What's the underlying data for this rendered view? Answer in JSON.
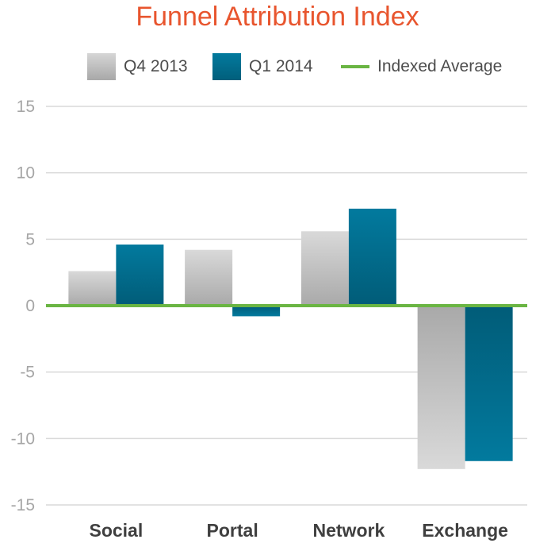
{
  "chart_data": {
    "type": "bar",
    "title": "Funnel Attribution Index",
    "xlabel": "",
    "ylabel": "",
    "categories": [
      "Social",
      "Portal",
      "Network",
      "Exchange"
    ],
    "series": [
      {
        "name": "Q4 2013",
        "values": [
          2.6,
          4.2,
          5.6,
          -12.3
        ],
        "color": "#bfbfbf"
      },
      {
        "name": "Q1 2014",
        "values": [
          4.6,
          -0.8,
          7.3,
          -11.7
        ],
        "color": "#016d8e"
      }
    ],
    "reference_line": {
      "name": "Indexed Average",
      "value": 0,
      "color": "#6ab543"
    },
    "ylim": [
      -15,
      15
    ],
    "yticks": [
      15,
      10,
      5,
      0,
      -5,
      -10,
      -15
    ],
    "grid": true,
    "legend_position": "top"
  }
}
